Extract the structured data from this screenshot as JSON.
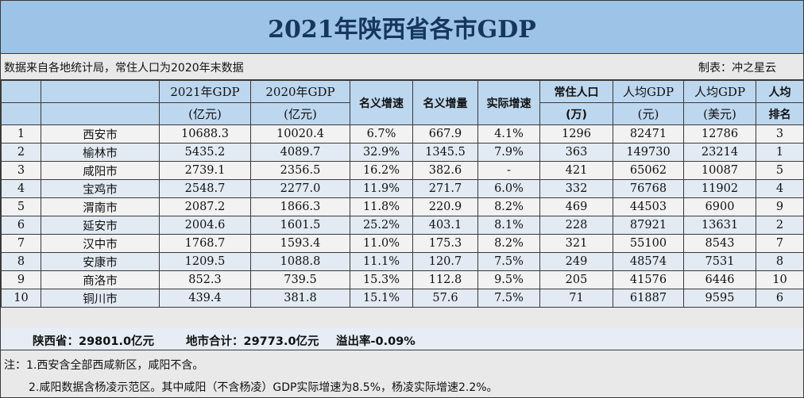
{
  "title": "2021年陕西省各市GDP",
  "source": "数据来自各地统计局，常住人口为2020年末数据",
  "maker": "制表：冲之星云",
  "headers": [
    {
      "l1": "",
      "l2": "",
      "merge": false
    },
    {
      "l1": "",
      "l2": "",
      "merge": false
    },
    {
      "l1": "2021年GDP",
      "l2": "(亿元)",
      "merge": false
    },
    {
      "l1": "2020年GDP",
      "l2": "(亿元)",
      "merge": false
    },
    {
      "l1": "名义增速",
      "l2": "",
      "merge": true
    },
    {
      "l1": "名义增量",
      "l2": "",
      "merge": true
    },
    {
      "l1": "实际增速",
      "l2": "",
      "merge": true
    },
    {
      "l1": "常住人口",
      "l2": "(万)",
      "merge": false
    },
    {
      "l1": "人均GDP",
      "l2": "(元)",
      "merge": false
    },
    {
      "l1": "人均GDP",
      "l2": "(美元)",
      "merge": false
    },
    {
      "l1": "人均",
      "l2": "排名",
      "merge": false
    }
  ],
  "rows": [
    [
      "1",
      "西安市",
      "10688.3",
      "10020.4",
      "6.7%",
      "667.9",
      "4.1%",
      "1296",
      "82471",
      "12786",
      "3"
    ],
    [
      "2",
      "榆林市",
      "5435.2",
      "4089.7",
      "32.9%",
      "1345.5",
      "7.9%",
      "363",
      "149730",
      "23214",
      "1"
    ],
    [
      "3",
      "咸阳市",
      "2739.1",
      "2356.5",
      "16.2%",
      "382.6",
      "-",
      "421",
      "65062",
      "10087",
      "5"
    ],
    [
      "4",
      "宝鸡市",
      "2548.7",
      "2277.0",
      "11.9%",
      "271.7",
      "6.0%",
      "332",
      "76768",
      "11902",
      "4"
    ],
    [
      "5",
      "渭南市",
      "2087.2",
      "1866.3",
      "11.8%",
      "220.9",
      "8.2%",
      "469",
      "44503",
      "6900",
      "9"
    ],
    [
      "6",
      "延安市",
      "2004.6",
      "1601.5",
      "25.2%",
      "403.1",
      "8.1%",
      "228",
      "87921",
      "13631",
      "2"
    ],
    [
      "7",
      "汉中市",
      "1768.7",
      "1593.4",
      "11.0%",
      "175.3",
      "8.2%",
      "321",
      "55100",
      "8543",
      "7"
    ],
    [
      "8",
      "安康市",
      "1209.5",
      "1088.8",
      "11.1%",
      "120.7",
      "7.5%",
      "249",
      "48574",
      "7531",
      "8"
    ],
    [
      "9",
      "商洛市",
      "852.3",
      "739.5",
      "15.3%",
      "112.8",
      "9.5%",
      "205",
      "41576",
      "6446",
      "10"
    ],
    [
      "10",
      "铜川市",
      "439.4",
      "381.8",
      "15.1%",
      "57.6",
      "7.5%",
      "71",
      "61887",
      "9595",
      "6"
    ]
  ],
  "summary": {
    "province": "陕西省：29801.0亿元",
    "city_total": "地市合计：29773.0亿元",
    "overflow": "溢出率-0.09%"
  },
  "notes": {
    "note1": "注：1.西安含全部西咸新区，咸阳不含。",
    "note2": "2.咸阳数据含杨凌示范区。其中咸阳（不含杨凌）GDP实际增速为8.5%，杨凌实际增速2.2%。"
  },
  "colors": {
    "title_bg": "#9dc3e6",
    "title_text": "#17365d",
    "header_bg": "#bdd7ee"
  }
}
